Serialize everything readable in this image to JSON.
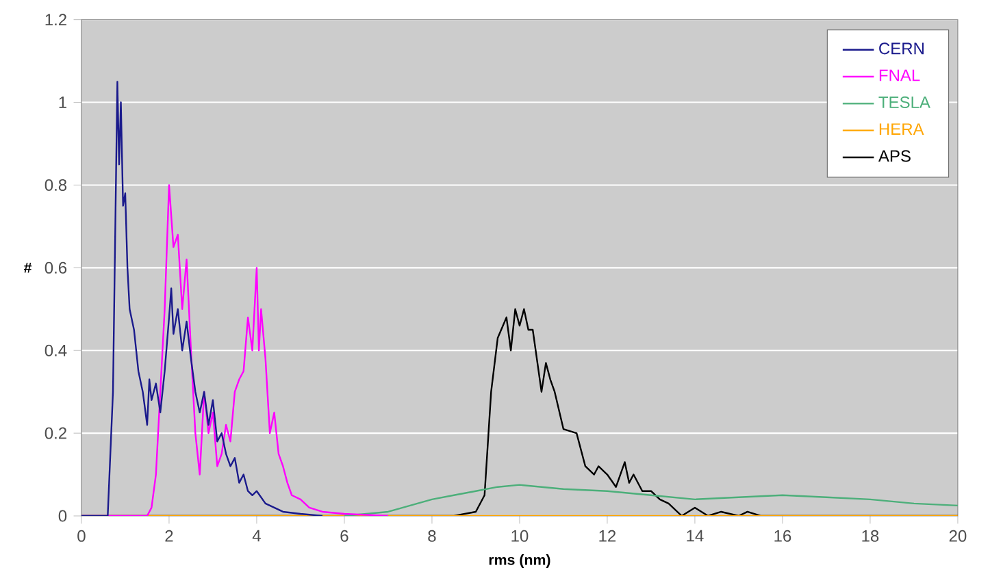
{
  "chart_data": {
    "type": "line",
    "xlabel": "rms (nm)",
    "ylabel": "#",
    "xlim": [
      0,
      20
    ],
    "xticks": [
      0,
      2,
      4,
      6,
      8,
      10,
      12,
      14,
      16,
      18,
      20
    ],
    "ylim": [
      0,
      1.2
    ],
    "yticks": [
      0,
      0.2,
      0.4,
      0.6,
      0.8,
      1,
      1.2
    ],
    "grid": "y",
    "legend": "top right",
    "marker": "none",
    "line_style": "solid",
    "series": [
      {
        "name": "CERN",
        "color": "#1a1a8c",
        "x": [
          0,
          0.6,
          0.72,
          0.82,
          0.86,
          0.9,
          0.95,
          1.0,
          1.05,
          1.1,
          1.2,
          1.3,
          1.4,
          1.5,
          1.55,
          1.6,
          1.7,
          1.8,
          1.9,
          2.0,
          2.05,
          2.1,
          2.2,
          2.3,
          2.4,
          2.5,
          2.6,
          2.7,
          2.8,
          2.9,
          3.0,
          3.1,
          3.2,
          3.3,
          3.4,
          3.5,
          3.6,
          3.7,
          3.8,
          3.9,
          4.0,
          4.2,
          4.4,
          4.6,
          5.0,
          5.5
        ],
        "values": [
          0,
          0,
          0.3,
          1.05,
          0.85,
          1.0,
          0.75,
          0.78,
          0.6,
          0.5,
          0.45,
          0.35,
          0.3,
          0.22,
          0.33,
          0.28,
          0.32,
          0.25,
          0.35,
          0.48,
          0.55,
          0.44,
          0.5,
          0.4,
          0.47,
          0.38,
          0.3,
          0.25,
          0.3,
          0.22,
          0.28,
          0.18,
          0.2,
          0.15,
          0.12,
          0.14,
          0.08,
          0.1,
          0.06,
          0.05,
          0.06,
          0.03,
          0.02,
          0.01,
          0.005,
          0
        ]
      },
      {
        "name": "FNAL",
        "color": "#ff00ff",
        "x": [
          0,
          1.5,
          1.6,
          1.7,
          1.8,
          1.9,
          2.0,
          2.1,
          2.2,
          2.3,
          2.4,
          2.5,
          2.6,
          2.7,
          2.8,
          2.9,
          3.0,
          3.1,
          3.2,
          3.3,
          3.4,
          3.5,
          3.6,
          3.7,
          3.8,
          3.9,
          4.0,
          4.05,
          4.1,
          4.2,
          4.3,
          4.4,
          4.5,
          4.6,
          4.7,
          4.8,
          5.0,
          5.2,
          5.5,
          6,
          7
        ],
        "values": [
          0,
          0,
          0.02,
          0.1,
          0.3,
          0.5,
          0.8,
          0.65,
          0.68,
          0.5,
          0.62,
          0.4,
          0.2,
          0.1,
          0.3,
          0.2,
          0.25,
          0.12,
          0.15,
          0.22,
          0.18,
          0.3,
          0.33,
          0.35,
          0.48,
          0.4,
          0.6,
          0.4,
          0.5,
          0.38,
          0.2,
          0.25,
          0.15,
          0.12,
          0.08,
          0.05,
          0.04,
          0.02,
          0.01,
          0.005,
          0
        ]
      },
      {
        "name": "TESLA",
        "color": "#4caf7a",
        "x": [
          6,
          7,
          8,
          8.5,
          9,
          9.5,
          10,
          10.5,
          11,
          12,
          13,
          14,
          15,
          16,
          17,
          18,
          19,
          20
        ],
        "values": [
          0,
          0.01,
          0.04,
          0.05,
          0.06,
          0.07,
          0.075,
          0.07,
          0.065,
          0.06,
          0.05,
          0.04,
          0.045,
          0.05,
          0.045,
          0.04,
          0.03,
          0.025
        ]
      },
      {
        "name": "HERA",
        "color": "#ffa500",
        "x": [
          0,
          20
        ],
        "values": [
          0,
          0
        ]
      },
      {
        "name": "APS",
        "color": "#000000",
        "x": [
          0,
          8.5,
          9.0,
          9.2,
          9.35,
          9.5,
          9.7,
          9.8,
          9.9,
          10.0,
          10.1,
          10.2,
          10.3,
          10.5,
          10.6,
          10.7,
          10.8,
          11.0,
          11.3,
          11.5,
          11.7,
          11.8,
          12.0,
          12.2,
          12.4,
          12.5,
          12.6,
          12.8,
          13.0,
          13.2,
          13.4,
          13.7,
          14.0,
          14.3,
          14.6,
          15,
          15.2,
          15.5,
          20
        ],
        "values": [
          0,
          0,
          0.01,
          0.05,
          0.3,
          0.43,
          0.48,
          0.4,
          0.5,
          0.46,
          0.5,
          0.45,
          0.45,
          0.3,
          0.37,
          0.33,
          0.3,
          0.21,
          0.2,
          0.12,
          0.1,
          0.12,
          0.1,
          0.07,
          0.13,
          0.08,
          0.1,
          0.06,
          0.06,
          0.04,
          0.03,
          0,
          0.02,
          0,
          0.01,
          0,
          0.01,
          0,
          0
        ]
      }
    ]
  }
}
